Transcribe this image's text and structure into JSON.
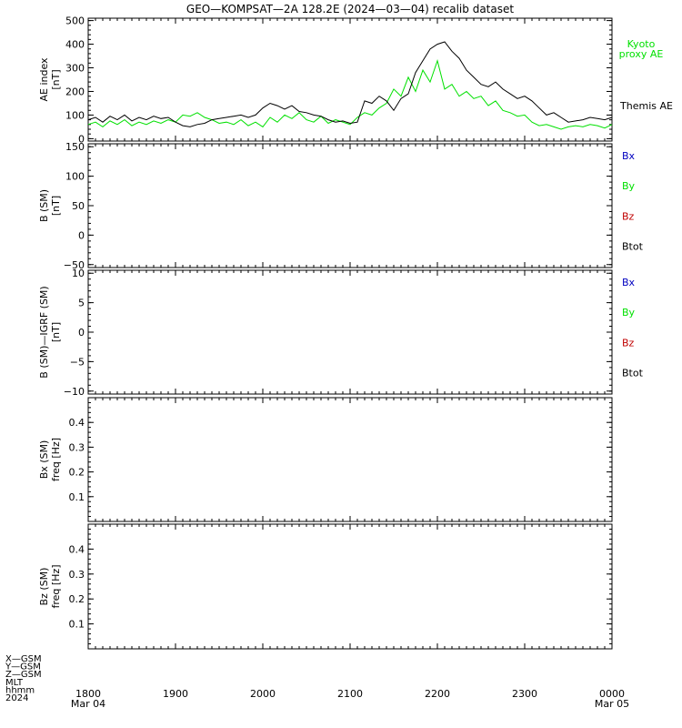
{
  "title": "GEO—KOMPSAT—2A 128.2E (2024—03—04) recalib dataset",
  "colors": {
    "black": "#000000",
    "green": "#00e000",
    "blue": "#0000c0",
    "red": "#c00000"
  },
  "chart_data": [
    {
      "type": "line",
      "panel": "ae",
      "ylabel": [
        "AE index",
        "[nT]"
      ],
      "ylim": [
        -10,
        510
      ],
      "yticks": [
        0,
        100,
        200,
        300,
        400,
        500
      ],
      "ytick_labels": [
        "0",
        "100",
        "200",
        "300",
        "400",
        "500"
      ],
      "xlim": [
        0,
        360
      ],
      "series": [
        {
          "name": "Kyoto proxy AE",
          "legend": [
            "Kyoto",
            "proxy AE"
          ],
          "color": "#00e000",
          "x": [
            0,
            5,
            10,
            15,
            20,
            25,
            30,
            35,
            40,
            45,
            50,
            55,
            60,
            65,
            70,
            75,
            80,
            85,
            90,
            95,
            100,
            105,
            110,
            115,
            120,
            125,
            130,
            135,
            140,
            145,
            150,
            155,
            160,
            165,
            170,
            175,
            180,
            185,
            190,
            195,
            200,
            205,
            210,
            215,
            220,
            225,
            230,
            235,
            240,
            245,
            250,
            255,
            260,
            265,
            270,
            275,
            280,
            285,
            290,
            295,
            300,
            305,
            310,
            315,
            320,
            325,
            330,
            335,
            340,
            345,
            350,
            355,
            360
          ],
          "y": [
            60,
            70,
            50,
            75,
            60,
            80,
            55,
            70,
            60,
            75,
            65,
            80,
            70,
            100,
            95,
            110,
            90,
            80,
            65,
            70,
            60,
            80,
            55,
            70,
            50,
            90,
            70,
            100,
            85,
            110,
            80,
            70,
            95,
            65,
            80,
            70,
            60,
            90,
            110,
            100,
            130,
            150,
            210,
            180,
            260,
            200,
            290,
            240,
            330,
            210,
            230,
            180,
            200,
            170,
            180,
            140,
            160,
            120,
            110,
            95,
            100,
            70,
            55,
            60,
            50,
            40,
            50,
            55,
            50,
            60,
            55,
            45,
            60
          ]
        },
        {
          "name": "Themis AE",
          "legend": [
            "Themis AE"
          ],
          "color": "#000000",
          "x": [
            0,
            5,
            10,
            15,
            20,
            25,
            30,
            35,
            40,
            45,
            50,
            55,
            60,
            65,
            70,
            75,
            80,
            85,
            90,
            95,
            100,
            105,
            110,
            115,
            120,
            125,
            130,
            135,
            140,
            145,
            150,
            155,
            160,
            165,
            170,
            175,
            180,
            185,
            190,
            195,
            200,
            205,
            210,
            215,
            220,
            225,
            230,
            235,
            240,
            245,
            250,
            255,
            260,
            265,
            270,
            275,
            280,
            285,
            290,
            295,
            300,
            305,
            310,
            315,
            320,
            325,
            330,
            335,
            340,
            345,
            350,
            355,
            360
          ],
          "y": [
            80,
            90,
            70,
            95,
            80,
            100,
            75,
            90,
            80,
            95,
            85,
            90,
            70,
            55,
            50,
            60,
            65,
            80,
            85,
            90,
            95,
            100,
            90,
            100,
            130,
            150,
            140,
            125,
            140,
            115,
            110,
            100,
            95,
            80,
            70,
            75,
            65,
            70,
            160,
            150,
            180,
            160,
            120,
            170,
            190,
            280,
            330,
            380,
            400,
            410,
            370,
            340,
            290,
            260,
            230,
            220,
            240,
            210,
            190,
            170,
            180,
            160,
            130,
            100,
            110,
            90,
            70,
            75,
            80,
            90,
            85,
            80,
            90
          ]
        }
      ]
    },
    {
      "type": "line",
      "panel": "b",
      "ylabel": [
        "B (SM)",
        "[nT]"
      ],
      "ylim": [
        -55,
        155
      ],
      "yticks": [
        -50,
        0,
        50,
        100,
        150
      ],
      "ytick_labels": [
        "−50",
        "0",
        "50",
        "100",
        "150"
      ],
      "legend": [
        {
          "name": "Bx",
          "color": "#0000c0"
        },
        {
          "name": "By",
          "color": "#00e000"
        },
        {
          "name": "Bz",
          "color": "#c00000"
        },
        {
          "name": "Btot",
          "color": "#000000"
        }
      ],
      "series": []
    },
    {
      "type": "line",
      "panel": "dbiga",
      "ylabel": [
        "B (SM)—IGRF (SM)",
        "[nT]"
      ],
      "ylim": [
        -10.5,
        10.5
      ],
      "yticks": [
        -10,
        -5,
        0,
        5,
        10
      ],
      "ytick_labels": [
        "−10",
        "−5",
        "0",
        "5",
        "10"
      ],
      "legend": [
        {
          "name": "Bx",
          "color": "#0000c0"
        },
        {
          "name": "By",
          "color": "#00e000"
        },
        {
          "name": "Bz",
          "color": "#c00000"
        },
        {
          "name": "Btot",
          "color": "#000000"
        }
      ],
      "series": []
    },
    {
      "type": "heatmap",
      "panel": "bx",
      "ylabel": [
        "Bx (SM)",
        "freq [Hz]"
      ],
      "ylim": [
        0,
        0.5
      ],
      "yticks": [
        0.1,
        0.2,
        0.3,
        0.4
      ],
      "ytick_labels": [
        "0.1",
        "0.2",
        "0.3",
        "0.4"
      ],
      "series": []
    },
    {
      "type": "heatmap",
      "panel": "bz",
      "ylabel": [
        "Bz (SM)",
        "freq [Hz]"
      ],
      "ylim": [
        0,
        0.5
      ],
      "yticks": [
        0.1,
        0.2,
        0.3,
        0.4
      ],
      "ytick_labels": [
        "0.1",
        "0.2",
        "0.3",
        "0.4"
      ],
      "series": []
    }
  ],
  "x_axis": {
    "xlim": [
      0,
      360
    ],
    "major_ticks": [
      0,
      60,
      120,
      180,
      240,
      300,
      360
    ],
    "row_labels": [
      "X—GSM",
      "Y—GSM",
      "Z—GSM",
      "MLT",
      "hhmm",
      "2024"
    ],
    "tick_labels": [
      {
        "at": 0,
        "lines": [
          "1800",
          "Mar 04"
        ]
      },
      {
        "at": 60,
        "lines": [
          "1900"
        ]
      },
      {
        "at": 120,
        "lines": [
          "2000"
        ]
      },
      {
        "at": 180,
        "lines": [
          "2100"
        ]
      },
      {
        "at": 240,
        "lines": [
          "2200"
        ]
      },
      {
        "at": 300,
        "lines": [
          "2300"
        ]
      },
      {
        "at": 360,
        "lines": [
          "0000",
          "Mar 05"
        ]
      }
    ]
  }
}
